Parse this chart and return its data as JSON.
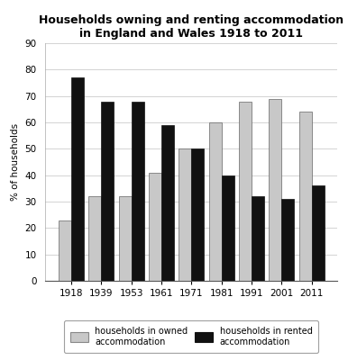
{
  "title": "Households owning and renting accommodation\nin England and Wales 1918 to 2011",
  "years": [
    "1918",
    "1939",
    "1953",
    "1961",
    "1971",
    "1981",
    "1991",
    "2001",
    "2011"
  ],
  "owned": [
    23,
    32,
    32,
    41,
    50,
    60,
    68,
    69,
    64
  ],
  "rented": [
    77,
    68,
    68,
    59,
    50,
    40,
    32,
    31,
    36
  ],
  "owned_color": "#c8c8c8",
  "rented_color": "#111111",
  "ylabel": "% of households",
  "ylim": [
    0,
    90
  ],
  "yticks": [
    0,
    10,
    20,
    30,
    40,
    50,
    60,
    70,
    80,
    90
  ],
  "legend_owned": "households in owned\naccommodation",
  "legend_rented": "households in rented\naccommodation",
  "title_fontsize": 9.0,
  "axis_fontsize": 7.5,
  "legend_fontsize": 7.0,
  "bar_width": 0.42,
  "background_color": "#ffffff"
}
